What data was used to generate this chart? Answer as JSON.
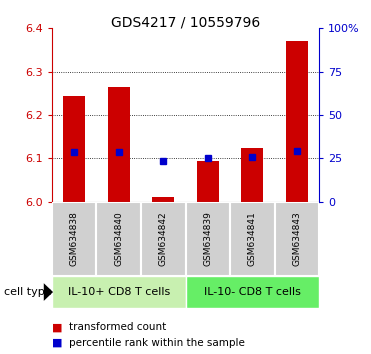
{
  "title": "GDS4217 / 10559796",
  "samples": [
    "GSM634838",
    "GSM634840",
    "GSM634842",
    "GSM634839",
    "GSM634841",
    "GSM634843"
  ],
  "red_values": [
    6.245,
    6.265,
    6.01,
    6.095,
    6.125,
    6.37
  ],
  "blue_values": [
    6.115,
    6.115,
    6.095,
    6.102,
    6.103,
    6.118
  ],
  "ylim_left": [
    6.0,
    6.4
  ],
  "ylim_right": [
    0,
    100
  ],
  "yticks_left": [
    6.0,
    6.1,
    6.2,
    6.3,
    6.4
  ],
  "yticks_right": [
    0,
    25,
    50,
    75,
    100
  ],
  "ytick_labels_right": [
    "0",
    "25",
    "50",
    "75",
    "100%"
  ],
  "group1_label": "IL-10+ CD8 T cells",
  "group2_label": "IL-10- CD8 T cells",
  "group1_indices": [
    0,
    1,
    2
  ],
  "group2_indices": [
    3,
    4,
    5
  ],
  "cell_type_label": "cell type",
  "legend_red": "transformed count",
  "legend_blue": "percentile rank within the sample",
  "bar_color": "#cc0000",
  "dot_color": "#0000cc",
  "bar_width": 0.5,
  "group1_bg": "#c8f0b0",
  "group2_bg": "#66ee66",
  "sample_bg": "#d0d0d0",
  "gridline_color": "#000000",
  "left_axis_color": "#cc0000",
  "right_axis_color": "#0000cc",
  "title_fontsize": 10,
  "tick_fontsize": 8,
  "sample_fontsize": 6.5,
  "group_fontsize": 8,
  "legend_fontsize": 7.5,
  "cell_type_fontsize": 8
}
